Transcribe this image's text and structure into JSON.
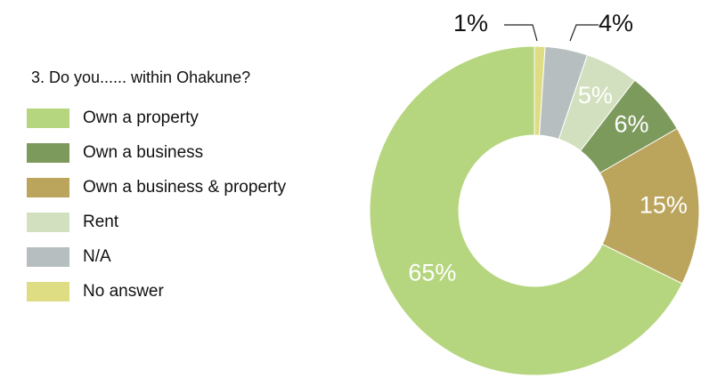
{
  "chart_data": {
    "type": "donut",
    "title": "3. Do you...... within Ohakune?",
    "categories": [
      "No answer",
      "N/A",
      "Rent",
      "Own a business",
      "Own a business & property",
      "Own a property"
    ],
    "values": [
      1,
      4,
      5,
      6,
      15,
      65
    ],
    "value_labels": [
      "1%",
      "4%",
      "5%",
      "6%",
      "15%",
      "65%"
    ],
    "colors": [
      "#dedd84",
      "#b7bec0",
      "#d3e0bf",
      "#7d9a5d",
      "#bba55d",
      "#b5d67e"
    ],
    "legend": "left"
  }
}
